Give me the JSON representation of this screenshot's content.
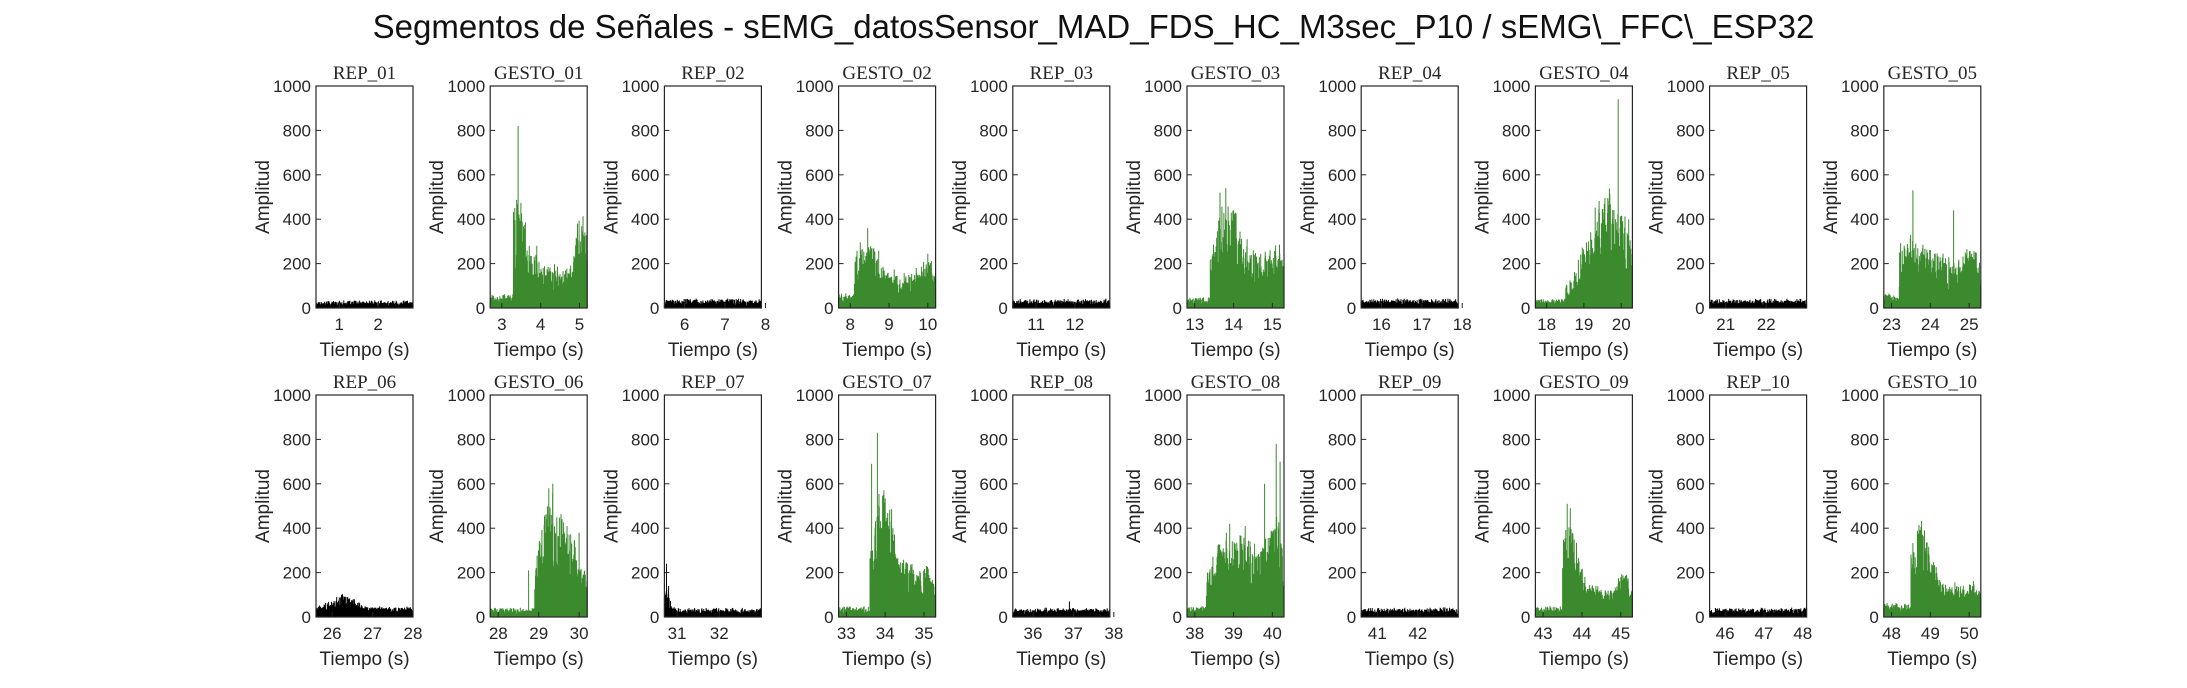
{
  "figure": {
    "title": "Segmentos de Señales - sEMG_datosSensor_MAD_FDS_HC_M3sec_P10 / sEMG\\_FFC\\_ESP32"
  },
  "chart_data": {
    "type": "line",
    "grid": false,
    "ylim": [
      0,
      1000
    ],
    "yticks": [
      0,
      200,
      400,
      600,
      800,
      1000
    ],
    "xlabel": "Tiempo (s)",
    "ylabel": "Amplitud",
    "colors": {
      "rest": "#000000",
      "gesture": "#3b8a2e",
      "axis": "#262626"
    },
    "panels": [
      {
        "title": "REP_01",
        "kind": "rest",
        "xlim": [
          0.4,
          2.9
        ],
        "xticks": [
          1,
          2
        ],
        "baseline": 20,
        "noise": 12,
        "bursts": [],
        "spikes": []
      },
      {
        "title": "GESTO_01",
        "kind": "gesture",
        "xlim": [
          2.7,
          5.2
        ],
        "xticks": [
          3,
          4,
          5
        ],
        "baseline": 40,
        "noise": 15,
        "onset": 3.3,
        "bursts": [
          {
            "t": 3.4,
            "a": 230,
            "w": 0.35
          },
          {
            "t": 4.2,
            "a": 90,
            "w": 0.8
          },
          {
            "t": 5.05,
            "a": 200,
            "w": 0.25
          }
        ],
        "spikes": [
          {
            "t": 3.42,
            "v": 820
          },
          {
            "t": 3.55,
            "v": 300
          },
          {
            "t": 3.9,
            "v": 280
          },
          {
            "t": 4.95,
            "v": 380
          },
          {
            "t": 5.1,
            "v": 330
          }
        ]
      },
      {
        "title": "REP_02",
        "kind": "rest",
        "xlim": [
          5.5,
          7.9
        ],
        "xticks": [
          6,
          7,
          8
        ],
        "baseline": 25,
        "noise": 12,
        "bursts": [],
        "spikes": []
      },
      {
        "title": "GESTO_02",
        "kind": "gesture",
        "xlim": [
          7.7,
          10.2
        ],
        "xticks": [
          8,
          9,
          10
        ],
        "baseline": 40,
        "noise": 15,
        "onset": 8.1,
        "bursts": [
          {
            "t": 8.4,
            "a": 140,
            "w": 0.5
          },
          {
            "t": 9.3,
            "a": 60,
            "w": 0.8
          },
          {
            "t": 10.0,
            "a": 90,
            "w": 0.3
          }
        ],
        "spikes": [
          {
            "t": 8.45,
            "v": 360
          },
          {
            "t": 8.7,
            "v": 220
          },
          {
            "t": 9.7,
            "v": 180
          },
          {
            "t": 10.1,
            "v": 160
          }
        ]
      },
      {
        "title": "REP_03",
        "kind": "rest",
        "xlim": [
          10.4,
          12.9
        ],
        "xticks": [
          11,
          12
        ],
        "baseline": 25,
        "noise": 12,
        "bursts": [],
        "spikes": []
      },
      {
        "title": "GESTO_03",
        "kind": "gesture",
        "xlim": [
          12.8,
          15.3
        ],
        "xticks": [
          13,
          14,
          15
        ],
        "baseline": 30,
        "noise": 12,
        "onset": 13.4,
        "bursts": [
          {
            "t": 13.8,
            "a": 260,
            "w": 0.4
          },
          {
            "t": 14.5,
            "a": 120,
            "w": 0.7
          },
          {
            "t": 15.1,
            "a": 110,
            "w": 0.3
          }
        ],
        "spikes": [
          {
            "t": 13.65,
            "v": 520
          },
          {
            "t": 13.8,
            "v": 540
          },
          {
            "t": 14.0,
            "v": 440
          },
          {
            "t": 14.35,
            "v": 310
          }
        ]
      },
      {
        "title": "REP_04",
        "kind": "rest",
        "xlim": [
          15.5,
          17.9
        ],
        "xticks": [
          16,
          17,
          18
        ],
        "baseline": 25,
        "noise": 12,
        "bursts": [],
        "spikes": []
      },
      {
        "title": "GESTO_04",
        "kind": "gesture",
        "xlim": [
          17.7,
          20.3
        ],
        "xticks": [
          18,
          19,
          20
        ],
        "baseline": 25,
        "noise": 12,
        "onset": 18.5,
        "bursts": [
          {
            "t": 19.2,
            "a": 160,
            "w": 0.6
          },
          {
            "t": 19.6,
            "a": 230,
            "w": 0.35
          },
          {
            "t": 20.1,
            "a": 200,
            "w": 0.3
          }
        ],
        "spikes": [
          {
            "t": 19.5,
            "v": 400
          },
          {
            "t": 19.75,
            "v": 380
          },
          {
            "t": 19.92,
            "v": 940
          },
          {
            "t": 20.2,
            "v": 400
          }
        ]
      },
      {
        "title": "REP_05",
        "kind": "rest",
        "xlim": [
          20.6,
          23.0
        ],
        "xticks": [
          21,
          22
        ],
        "baseline": 25,
        "noise": 12,
        "bursts": [],
        "spikes": []
      },
      {
        "title": "GESTO_05",
        "kind": "gesture",
        "xlim": [
          22.8,
          25.3
        ],
        "xticks": [
          23,
          24,
          25
        ],
        "baseline": 40,
        "noise": 15,
        "onset": 23.2,
        "bursts": [
          {
            "t": 23.4,
            "a": 130,
            "w": 0.4
          },
          {
            "t": 24.2,
            "a": 120,
            "w": 0.9
          },
          {
            "t": 25.1,
            "a": 110,
            "w": 0.3
          }
        ],
        "spikes": [
          {
            "t": 23.55,
            "v": 530
          },
          {
            "t": 23.4,
            "v": 260
          },
          {
            "t": 24.6,
            "v": 440
          },
          {
            "t": 24.9,
            "v": 250
          }
        ]
      },
      {
        "title": "REP_06",
        "kind": "rest",
        "xlim": [
          25.6,
          28.0
        ],
        "xticks": [
          26,
          27,
          28
        ],
        "baseline": 30,
        "noise": 15,
        "bursts": [
          {
            "t": 26.3,
            "a": 40,
            "w": 0.4
          }
        ],
        "spikes": [
          {
            "t": 26.25,
            "v": 100
          },
          {
            "t": 26.55,
            "v": 80
          }
        ]
      },
      {
        "title": "GESTO_06",
        "kind": "gesture",
        "xlim": [
          27.8,
          30.2
        ],
        "xticks": [
          28,
          29,
          30
        ],
        "baseline": 25,
        "noise": 12,
        "onset": 28.9,
        "bursts": [
          {
            "t": 29.3,
            "a": 300,
            "w": 0.45
          },
          {
            "t": 29.9,
            "a": 160,
            "w": 0.4
          }
        ],
        "spikes": [
          {
            "t": 28.75,
            "v": 210
          },
          {
            "t": 29.25,
            "v": 580
          },
          {
            "t": 29.35,
            "v": 600
          },
          {
            "t": 29.7,
            "v": 410
          },
          {
            "t": 30.0,
            "v": 380
          }
        ]
      },
      {
        "title": "REP_07",
        "kind": "rest",
        "xlim": [
          30.7,
          33.0
        ],
        "xticks": [
          31,
          32
        ],
        "baseline": 25,
        "noise": 12,
        "bursts": [
          {
            "t": 30.75,
            "a": 60,
            "w": 0.1
          }
        ],
        "spikes": [
          {
            "t": 30.75,
            "v": 240
          },
          {
            "t": 30.8,
            "v": 140
          }
        ]
      },
      {
        "title": "GESTO_07",
        "kind": "gesture",
        "xlim": [
          32.8,
          35.3
        ],
        "xticks": [
          33,
          34,
          35
        ],
        "baseline": 30,
        "noise": 12,
        "onset": 33.6,
        "bursts": [
          {
            "t": 33.9,
            "a": 280,
            "w": 0.35
          },
          {
            "t": 34.4,
            "a": 130,
            "w": 0.6
          },
          {
            "t": 35.1,
            "a": 90,
            "w": 0.3
          }
        ],
        "spikes": [
          {
            "t": 33.65,
            "v": 690
          },
          {
            "t": 33.8,
            "v": 830
          },
          {
            "t": 33.95,
            "v": 550
          },
          {
            "t": 34.2,
            "v": 400
          }
        ]
      },
      {
        "title": "REP_08",
        "kind": "rest",
        "xlim": [
          35.5,
          37.9
        ],
        "xticks": [
          36,
          37,
          38
        ],
        "baseline": 25,
        "noise": 12,
        "bursts": [],
        "spikes": [
          {
            "t": 36.9,
            "v": 70
          }
        ]
      },
      {
        "title": "GESTO_08",
        "kind": "gesture",
        "xlim": [
          37.8,
          40.3
        ],
        "xticks": [
          38,
          39,
          40
        ],
        "baseline": 30,
        "noise": 12,
        "onset": 38.3,
        "bursts": [
          {
            "t": 38.7,
            "a": 160,
            "w": 0.5
          },
          {
            "t": 39.4,
            "a": 180,
            "w": 0.6
          },
          {
            "t": 40.1,
            "a": 220,
            "w": 0.3
          }
        ],
        "spikes": [
          {
            "t": 38.9,
            "v": 420
          },
          {
            "t": 39.3,
            "v": 410
          },
          {
            "t": 39.8,
            "v": 600
          },
          {
            "t": 40.1,
            "v": 780
          },
          {
            "t": 40.2,
            "v": 700
          }
        ]
      },
      {
        "title": "REP_09",
        "kind": "rest",
        "xlim": [
          40.6,
          43.0
        ],
        "xticks": [
          41,
          42
        ],
        "baseline": 25,
        "noise": 12,
        "bursts": [],
        "spikes": []
      },
      {
        "title": "GESTO_09",
        "kind": "gesture",
        "xlim": [
          42.8,
          45.3
        ],
        "xticks": [
          43,
          44,
          45
        ],
        "baseline": 30,
        "noise": 12,
        "onset": 43.5,
        "bursts": [
          {
            "t": 43.65,
            "a": 230,
            "w": 0.3
          },
          {
            "t": 44.2,
            "a": 70,
            "w": 0.7
          },
          {
            "t": 45.1,
            "a": 90,
            "w": 0.3
          }
        ],
        "spikes": [
          {
            "t": 43.62,
            "v": 510
          },
          {
            "t": 43.7,
            "v": 490
          },
          {
            "t": 44.0,
            "v": 210
          },
          {
            "t": 45.15,
            "v": 190
          }
        ]
      },
      {
        "title": "REP_10",
        "kind": "rest",
        "xlim": [
          45.6,
          48.1
        ],
        "xticks": [
          46,
          47,
          48
        ],
        "baseline": 25,
        "noise": 12,
        "bursts": [],
        "spikes": []
      },
      {
        "title": "GESTO_10",
        "kind": "gesture",
        "xlim": [
          47.8,
          50.3
        ],
        "xticks": [
          48,
          49,
          50
        ],
        "baseline": 40,
        "noise": 15,
        "onset": 48.5,
        "bursts": [
          {
            "t": 48.75,
            "a": 250,
            "w": 0.35
          },
          {
            "t": 49.5,
            "a": 60,
            "w": 0.6
          },
          {
            "t": 50.1,
            "a": 50,
            "w": 0.3
          }
        ],
        "spikes": [
          {
            "t": 48.7,
            "v": 360
          },
          {
            "t": 48.85,
            "v": 390
          },
          {
            "t": 49.0,
            "v": 200
          }
        ]
      }
    ]
  }
}
